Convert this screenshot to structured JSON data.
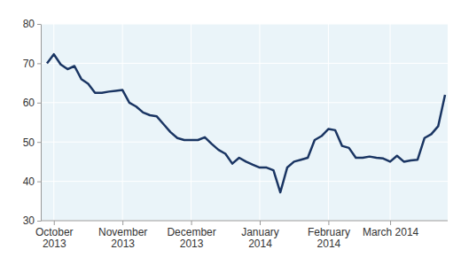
{
  "chart_data": {
    "type": "line",
    "categories": [
      null,
      "October\n2013",
      null,
      null,
      null,
      null,
      null,
      null,
      null,
      null,
      null,
      "November\n2013",
      null,
      null,
      null,
      null,
      null,
      null,
      null,
      null,
      null,
      "December\n2013",
      null,
      null,
      null,
      null,
      null,
      null,
      null,
      null,
      null,
      "January\n2014",
      null,
      null,
      null,
      null,
      null,
      null,
      null,
      null,
      null,
      "February\n2014",
      null,
      null,
      null,
      null,
      null,
      null,
      null,
      null,
      "March 2014",
      null,
      null,
      null,
      null,
      null,
      null,
      null,
      null
    ],
    "values": [
      70,
      72.3,
      69.7,
      68.5,
      69.3,
      66,
      64.8,
      62.5,
      62.5,
      62.8,
      63,
      63.2,
      60,
      59,
      57.5,
      56.8,
      56.5,
      54.5,
      52.5,
      51,
      50.5,
      50.5,
      50.5,
      51.2,
      49.5,
      48,
      47,
      44.5,
      46,
      45,
      44.2,
      43.5,
      43.5,
      42.8,
      37.2,
      43.5,
      45,
      45.5,
      46,
      50.5,
      51.5,
      53.3,
      53,
      49,
      48.5,
      46,
      46,
      46.3,
      46,
      45.8,
      45,
      46.5,
      45,
      45.3,
      45.5,
      51,
      52,
      54,
      62
    ],
    "color": "#1a3563",
    "ylim": [
      30,
      80
    ],
    "yticks": [
      30,
      40,
      50,
      60,
      70,
      80
    ],
    "grid": true
  }
}
